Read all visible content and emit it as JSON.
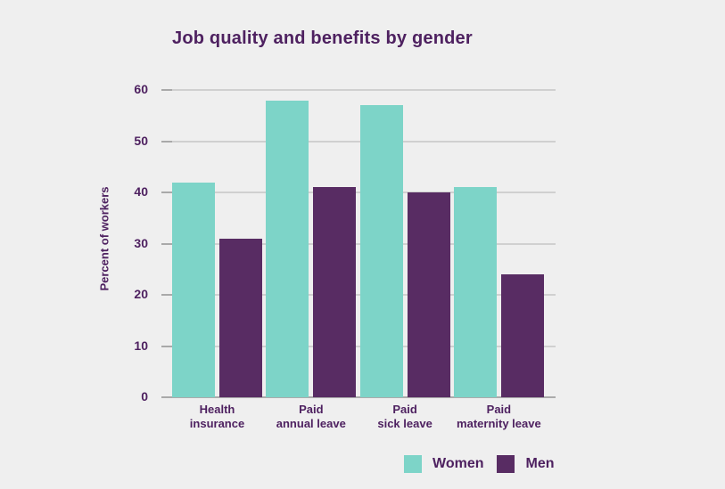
{
  "chart_data": {
    "type": "bar",
    "title": "Job quality and benefits by gender",
    "xlabel": "",
    "ylabel": "Percent of workers",
    "ylim": [
      0,
      60
    ],
    "yticks": [
      0,
      10,
      20,
      30,
      40,
      50,
      60
    ],
    "grid": true,
    "legend_position": "bottom",
    "categories": [
      "Health\ninsurance",
      "Paid\nannual leave",
      "Paid\nsick leave",
      "Paid\nmaternity leave"
    ],
    "series": [
      {
        "name": "Women",
        "color": "#7dd4c8",
        "values": [
          42,
          58,
          57,
          41
        ]
      },
      {
        "name": "Men",
        "color": "#582c63",
        "values": [
          31,
          41,
          40,
          24
        ]
      }
    ]
  },
  "colors": {
    "background": "#efefef",
    "text": "#4e2160",
    "gridline": "#d0d0d0",
    "axis_line": "#ababab",
    "tick": "#a9a9a9"
  }
}
